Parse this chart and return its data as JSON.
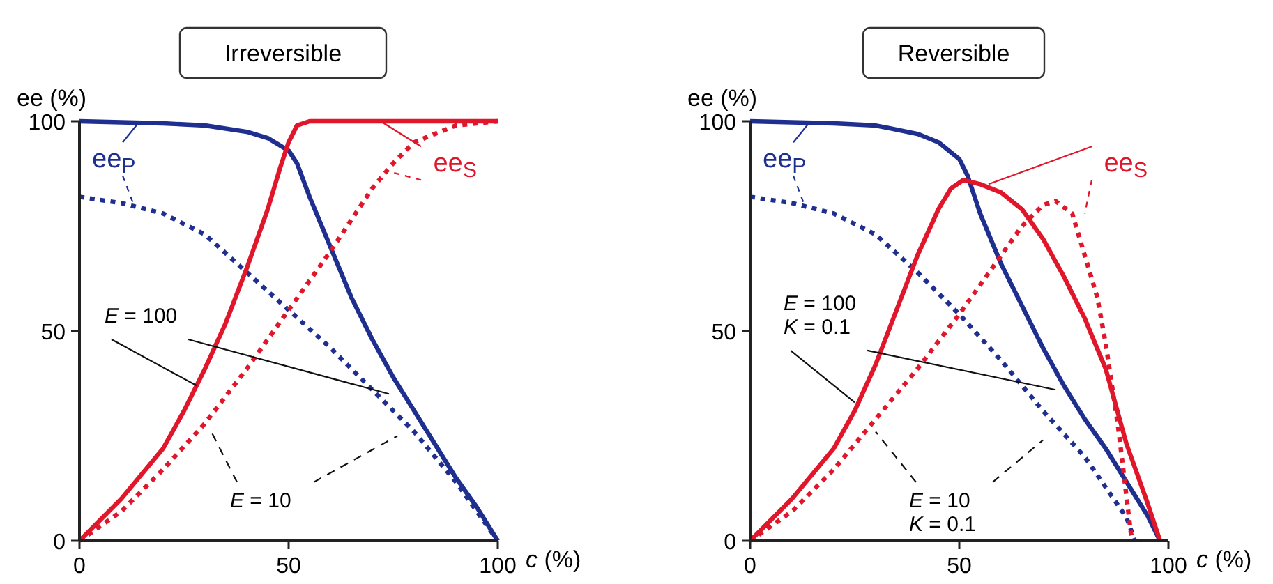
{
  "chart_data": [
    {
      "type": "line",
      "title": "Irreversible",
      "xlabel": "c (%)",
      "ylabel": "ee (%)",
      "xlim": [
        0,
        100
      ],
      "ylim": [
        0,
        100
      ],
      "xticks": [
        0,
        50,
        100
      ],
      "yticks": [
        0,
        50,
        100
      ],
      "annotations": [
        {
          "text": "E = 100",
          "x": 28,
          "y": 37
        },
        {
          "text": "E = 10",
          "x": 31,
          "y": 27
        }
      ],
      "series": [
        {
          "name": "ee$_{P}$",
          "color": "#1f2f8f",
          "line_style": "solid",
          "x": [
            0,
            20,
            30,
            40,
            45,
            50,
            52,
            55,
            60,
            65,
            70,
            75,
            80,
            85,
            90,
            95,
            100
          ],
          "values": [
            100,
            99.5,
            99,
            97.5,
            96,
            93,
            90,
            82,
            70,
            58,
            48,
            39,
            31,
            23,
            15,
            8,
            0
          ]
        },
        {
          "color": "#1f2f8f",
          "line_style": "dotted",
          "x": [
            0,
            10,
            20,
            30,
            40,
            50,
            60,
            70,
            80,
            90,
            100
          ],
          "values": [
            82,
            80.5,
            78,
            73,
            64,
            55,
            46,
            36,
            26,
            14,
            0
          ]
        },
        {
          "name": "ee$_{S}$",
          "color": "#e0162b",
          "line_style": "solid",
          "x": [
            0,
            10,
            20,
            25,
            30,
            35,
            40,
            45,
            48,
            50,
            52,
            55,
            100
          ],
          "values": [
            0,
            10,
            22,
            31,
            41,
            52,
            65,
            79,
            89,
            95,
            99,
            100,
            100
          ]
        },
        {
          "color": "#e0162b",
          "line_style": "dotted",
          "x": [
            0,
            10,
            20,
            30,
            40,
            50,
            60,
            70,
            75,
            80,
            90,
            100
          ],
          "values": [
            0,
            7,
            17,
            28,
            41,
            55,
            69,
            84,
            90,
            95,
            99,
            100
          ]
        }
      ]
    },
    {
      "type": "line",
      "title": "Reversible",
      "xlabel": "c (%)",
      "ylabel": "ee (%)",
      "xlim": [
        0,
        100
      ],
      "ylim": [
        0,
        100
      ],
      "xticks": [
        0,
        50,
        100
      ],
      "yticks": [
        0,
        50,
        100
      ],
      "annotations": [
        {
          "text": "E = 100\nK = 0.1",
          "x": 25,
          "y": 33
        },
        {
          "text": "E = 10\nK = 0.1",
          "x": 30,
          "y": 26
        }
      ],
      "series": [
        {
          "name": "ee$_{P}$",
          "color": "#1f2f8f",
          "line_style": "solid",
          "x": [
            0,
            20,
            30,
            40,
            45,
            50,
            52,
            55,
            60,
            65,
            70,
            75,
            80,
            85,
            90,
            95,
            98
          ],
          "values": [
            100,
            99.5,
            99,
            97,
            95,
            91,
            87,
            78,
            66,
            56,
            46,
            37,
            29,
            22,
            14,
            6,
            0
          ]
        },
        {
          "color": "#1f2f8f",
          "line_style": "dotted",
          "x": [
            0,
            10,
            20,
            30,
            40,
            50,
            60,
            70,
            80,
            90,
            92
          ],
          "values": [
            82,
            80.5,
            78,
            73,
            64,
            54,
            43,
            31,
            20,
            5.5,
            0
          ]
        },
        {
          "name": "ee$_{S}$",
          "color": "#e0162b",
          "line_style": "solid",
          "x": [
            0,
            10,
            20,
            25,
            30,
            35,
            40,
            45,
            48,
            51,
            55,
            60,
            65,
            70,
            75,
            80,
            85,
            90,
            95,
            98
          ],
          "values": [
            0,
            10,
            22,
            31,
            42,
            55,
            68,
            79,
            84,
            86,
            85,
            83,
            79,
            72,
            63,
            53,
            41,
            23,
            9,
            0
          ]
        },
        {
          "color": "#e0162b",
          "line_style": "dotted",
          "x": [
            0,
            10,
            20,
            30,
            40,
            50,
            60,
            65,
            70,
            73,
            77,
            80,
            83,
            85,
            88,
            91,
            91.5
          ],
          "values": [
            0,
            7,
            17,
            29,
            41,
            54,
            68,
            75,
            80,
            81,
            78,
            68,
            58,
            47,
            27,
            2,
            0
          ]
        }
      ]
    }
  ]
}
